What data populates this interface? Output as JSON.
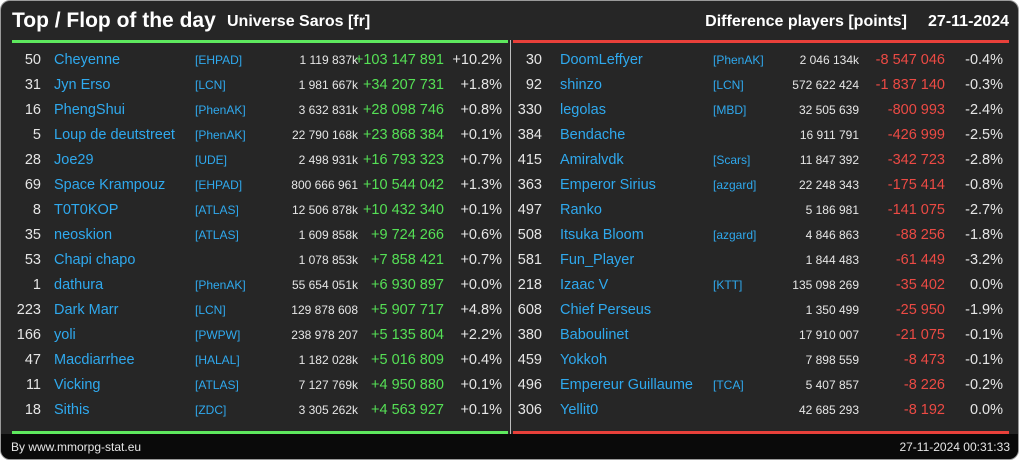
{
  "header": {
    "title": "Top / Flop of the day",
    "universe": "Universe Saros [fr]",
    "subtitle": "Difference players [points]",
    "date": "27-11-2024"
  },
  "top": [
    {
      "rank": "50",
      "name": "Cheyenne",
      "alliance": "[EHPAD]",
      "points": "1 119 837k",
      "diff": "+103 147 891",
      "pct": "+10.2%"
    },
    {
      "rank": "31",
      "name": "Jyn Erso",
      "alliance": "[LCN]",
      "points": "1 981 667k",
      "diff": "+34 207 731",
      "pct": "+1.8%"
    },
    {
      "rank": "16",
      "name": "PhengShui",
      "alliance": "[PhenAK]",
      "points": "3 632 831k",
      "diff": "+28 098 746",
      "pct": "+0.8%"
    },
    {
      "rank": "5",
      "name": "Loup de deutstreet",
      "alliance": "[PhenAK]",
      "points": "22 790 168k",
      "diff": "+23 868 384",
      "pct": "+0.1%"
    },
    {
      "rank": "28",
      "name": "Joe29",
      "alliance": "[UDE]",
      "points": "2 498 931k",
      "diff": "+16 793 323",
      "pct": "+0.7%"
    },
    {
      "rank": "69",
      "name": "Space Krampouz",
      "alliance": "[EHPAD]",
      "points": "800 666 961",
      "diff": "+10 544 042",
      "pct": "+1.3%"
    },
    {
      "rank": "8",
      "name": "T0T0KOP",
      "alliance": "[ATLAS]",
      "points": "12 506 878k",
      "diff": "+10 432 340",
      "pct": "+0.1%"
    },
    {
      "rank": "35",
      "name": "neoskion",
      "alliance": "[ATLAS]",
      "points": "1 609 858k",
      "diff": "+9 724 266",
      "pct": "+0.6%"
    },
    {
      "rank": "53",
      "name": "Chapi chapo",
      "alliance": "",
      "points": "1 078 853k",
      "diff": "+7 858 421",
      "pct": "+0.7%"
    },
    {
      "rank": "1",
      "name": "dathura",
      "alliance": "[PhenAK]",
      "points": "55 654 051k",
      "diff": "+6 930 897",
      "pct": "+0.0%"
    },
    {
      "rank": "223",
      "name": "Dark Marr",
      "alliance": "[LCN]",
      "points": "129 878 608",
      "diff": "+5 907 717",
      "pct": "+4.8%"
    },
    {
      "rank": "166",
      "name": "yoli",
      "alliance": "[PWPW]",
      "points": "238 978 207",
      "diff": "+5 135 804",
      "pct": "+2.2%"
    },
    {
      "rank": "47",
      "name": "Macdiarrhee",
      "alliance": "[HALAL]",
      "points": "1 182 028k",
      "diff": "+5 016 809",
      "pct": "+0.4%"
    },
    {
      "rank": "11",
      "name": "Vicking",
      "alliance": "[ATLAS]",
      "points": "7 127 769k",
      "diff": "+4 950 880",
      "pct": "+0.1%"
    },
    {
      "rank": "18",
      "name": "Sithis",
      "alliance": "[ZDC]",
      "points": "3 305 262k",
      "diff": "+4 563 927",
      "pct": "+0.1%"
    }
  ],
  "flop": [
    {
      "rank": "30",
      "name": "DoomLeffyer",
      "alliance": "[PhenAK]",
      "points": "2 046 134k",
      "diff": "-8 547 046",
      "pct": "-0.4%"
    },
    {
      "rank": "92",
      "name": "shinzo",
      "alliance": "[LCN]",
      "points": "572 622 424",
      "diff": "-1 837 140",
      "pct": "-0.3%"
    },
    {
      "rank": "330",
      "name": "legolas",
      "alliance": "[MBD]",
      "points": "32 505 639",
      "diff": "-800 993",
      "pct": "-2.4%"
    },
    {
      "rank": "384",
      "name": "Bendache",
      "alliance": "",
      "points": "16 911 791",
      "diff": "-426 999",
      "pct": "-2.5%"
    },
    {
      "rank": "415",
      "name": "Amiralvdk",
      "alliance": "[Scars]",
      "points": "11 847 392",
      "diff": "-342 723",
      "pct": "-2.8%"
    },
    {
      "rank": "363",
      "name": "Emperor Sirius",
      "alliance": "[azgard]",
      "points": "22 248 343",
      "diff": "-175 414",
      "pct": "-0.8%"
    },
    {
      "rank": "497",
      "name": "Ranko",
      "alliance": "",
      "points": "5 186 981",
      "diff": "-141 075",
      "pct": "-2.7%"
    },
    {
      "rank": "508",
      "name": "Itsuka Bloom",
      "alliance": "[azgard]",
      "points": "4 846 863",
      "diff": "-88 256",
      "pct": "-1.8%"
    },
    {
      "rank": "581",
      "name": "Fun_Player",
      "alliance": "",
      "points": "1 844 483",
      "diff": "-61 449",
      "pct": "-3.2%"
    },
    {
      "rank": "218",
      "name": "Izaac V",
      "alliance": "[KTT]",
      "points": "135 098 269",
      "diff": "-35 402",
      "pct": "0.0%"
    },
    {
      "rank": "608",
      "name": "Chief Perseus",
      "alliance": "",
      "points": "1 350 499",
      "diff": "-25 950",
      "pct": "-1.9%"
    },
    {
      "rank": "380",
      "name": "Baboulinet",
      "alliance": "",
      "points": "17 910 007",
      "diff": "-21 075",
      "pct": "-0.1%"
    },
    {
      "rank": "459",
      "name": "Yokkoh",
      "alliance": "",
      "points": "7 898 559",
      "diff": "-8 473",
      "pct": "-0.1%"
    },
    {
      "rank": "496",
      "name": "Empereur Guillaume",
      "alliance": "[TCA]",
      "points": "5 407 857",
      "diff": "-8 226",
      "pct": "-0.2%"
    },
    {
      "rank": "306",
      "name": "Yellit0",
      "alliance": "",
      "points": "42 685 293",
      "diff": "-8 192",
      "pct": "0.0%"
    }
  ],
  "footer": {
    "credit": "By www.mmorpg-stat.eu",
    "timestamp": "27-11-2024 00:31:33"
  },
  "colors": {
    "background": "#262626",
    "link": "#2fa9ee",
    "gain": "#55e055",
    "loss": "#ec4a44"
  }
}
